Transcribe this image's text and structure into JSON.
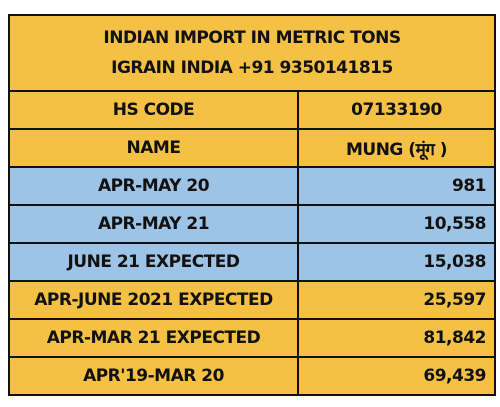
{
  "header": {
    "lines": [
      "INDIAN IMPORT IN METRIC TONS",
      "IGRAIN INDIA +91 9350141815"
    ]
  },
  "table": {
    "rows": [
      [
        "HS CODE",
        "07133190"
      ],
      [
        "NAME",
        "MUNG (मूंग )"
      ],
      [
        "APR-MAY 20",
        "981"
      ],
      [
        "APR-MAY 21",
        "10,558"
      ],
      [
        "JUNE 21 EXPECTED",
        "15,038"
      ],
      [
        "APR-JUNE 2021 EXPECTED",
        "25,597"
      ],
      [
        "APR-MAR 21 EXPECTED",
        "81,842"
      ],
      [
        "APR'19-MAR 20",
        "69,439"
      ]
    ]
  }
}
